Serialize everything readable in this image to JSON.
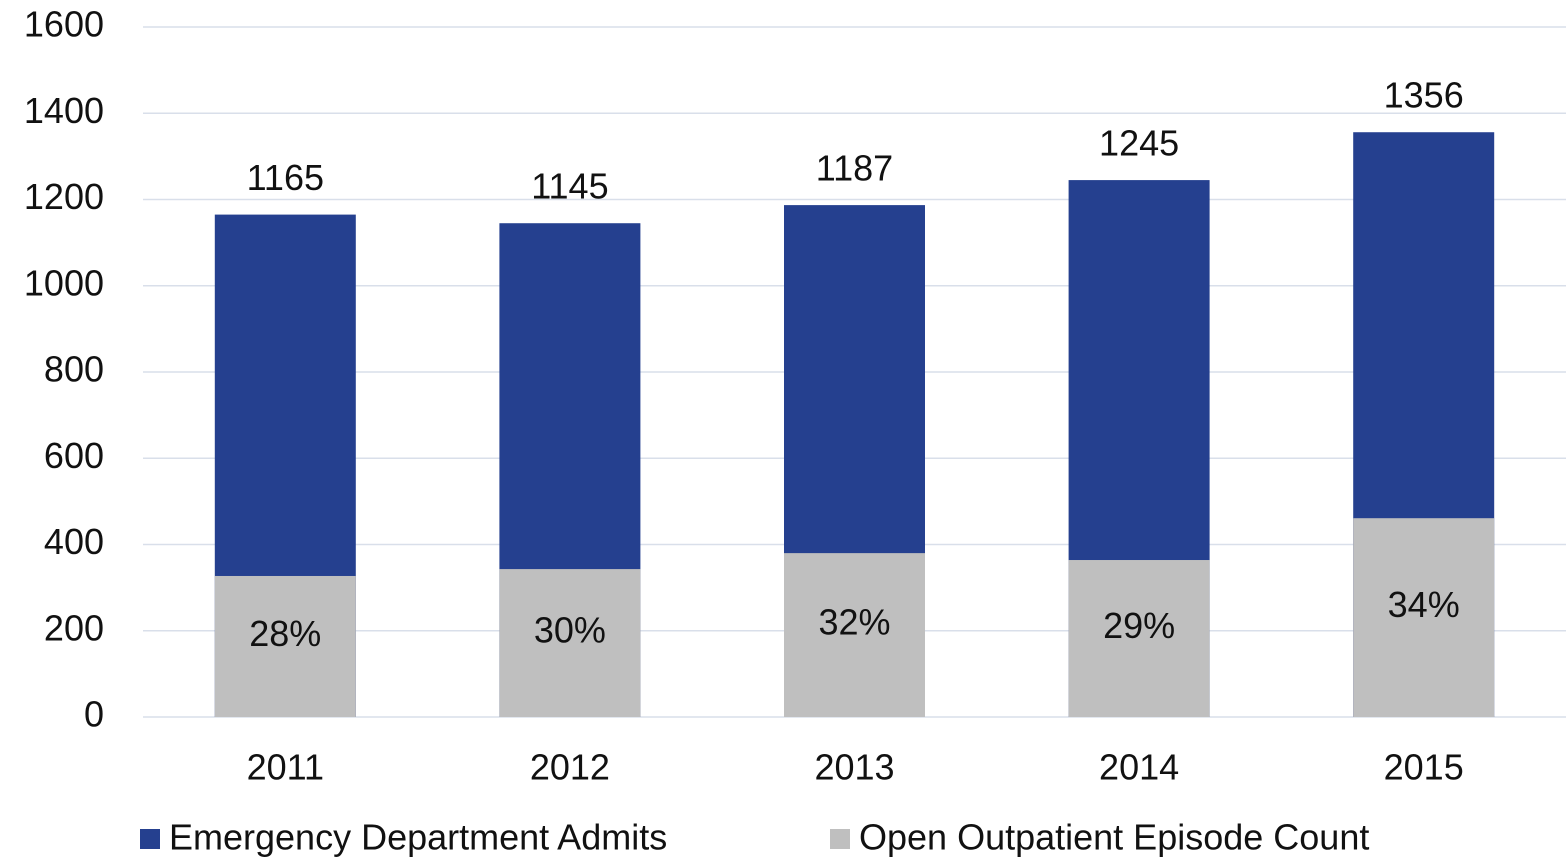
{
  "chart_data": {
    "type": "bar",
    "overlap": true,
    "categories": [
      "2011",
      "2012",
      "2013",
      "2014",
      "2015"
    ],
    "series": [
      {
        "name": "Emergency Department Admits",
        "color": "#25408f",
        "values": [
          1165,
          1145,
          1187,
          1245,
          1356
        ]
      },
      {
        "name": "Open Outpatient Episode Count",
        "color": "#bfbfbf",
        "values": [
          327,
          343,
          380,
          364,
          461
        ]
      }
    ],
    "annotations": [
      "28%",
      "30%",
      "32%",
      "29%",
      "34%"
    ],
    "ylim": [
      0,
      1600
    ],
    "yticks": [
      0,
      200,
      400,
      600,
      800,
      1000,
      1200,
      1400,
      1600
    ],
    "grid": true
  }
}
